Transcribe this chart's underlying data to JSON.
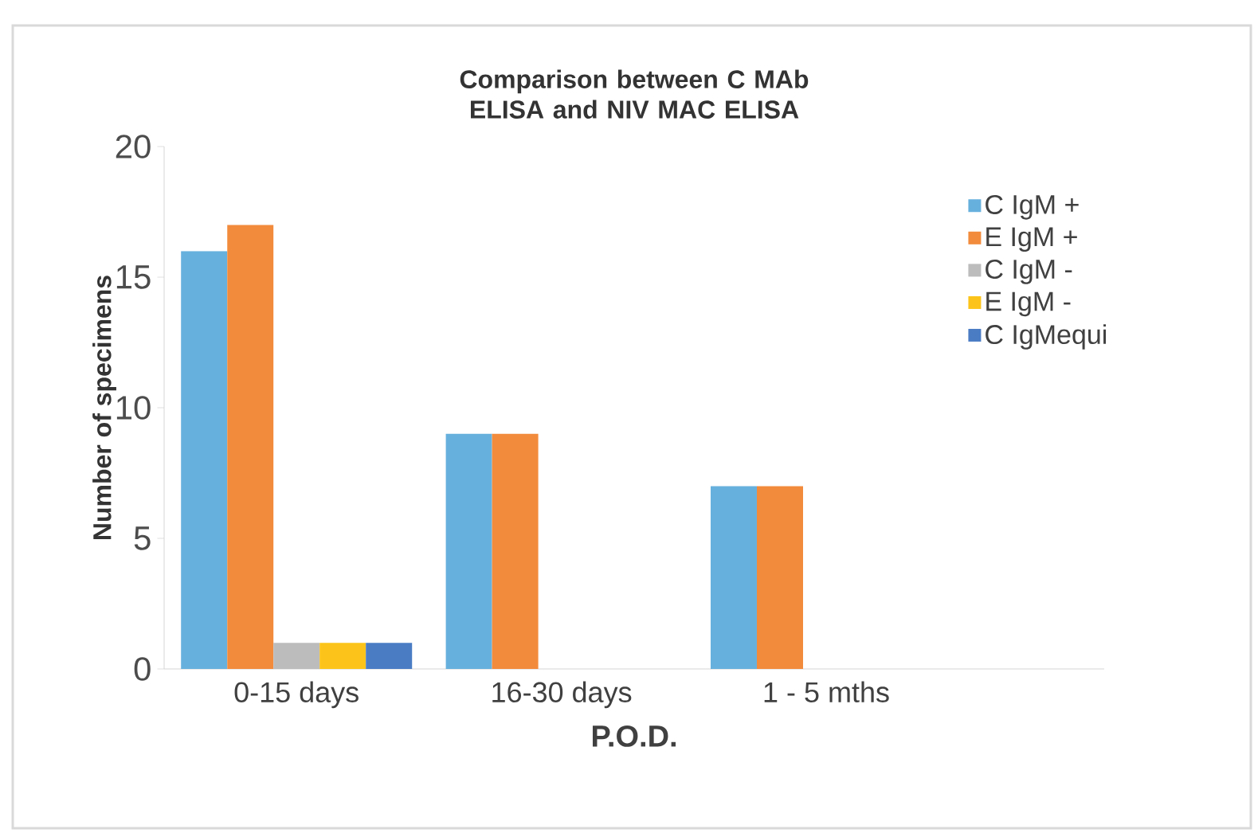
{
  "chart_data": {
    "type": "bar",
    "title": "Comparison between C MAb ELISA and NIV MAC ELISA",
    "xlabel": "P.O.D.",
    "ylabel": "Number of specimens",
    "categories": [
      "0-15 days",
      "16-30 days",
      "1 - 5 mths"
    ],
    "series": [
      {
        "name": "C IgM +",
        "color": "#66b0dd",
        "values": [
          16,
          9,
          7
        ]
      },
      {
        "name": "E IgM +",
        "color": "#f28b3c",
        "values": [
          17,
          9,
          7
        ]
      },
      {
        "name": "C IgM -",
        "color": "#bcbcbc",
        "values": [
          1,
          0,
          0
        ]
      },
      {
        "name": "E IgM -",
        "color": "#fcc41a",
        "values": [
          1,
          0,
          0
        ]
      },
      {
        "name": "C IgMequi",
        "color": "#4a7cc4",
        "values": [
          1,
          0,
          0
        ]
      }
    ],
    "ylim": [
      0,
      20
    ],
    "yticks": [
      0,
      5,
      10,
      15,
      20
    ],
    "grid": false,
    "legend": "top right"
  }
}
